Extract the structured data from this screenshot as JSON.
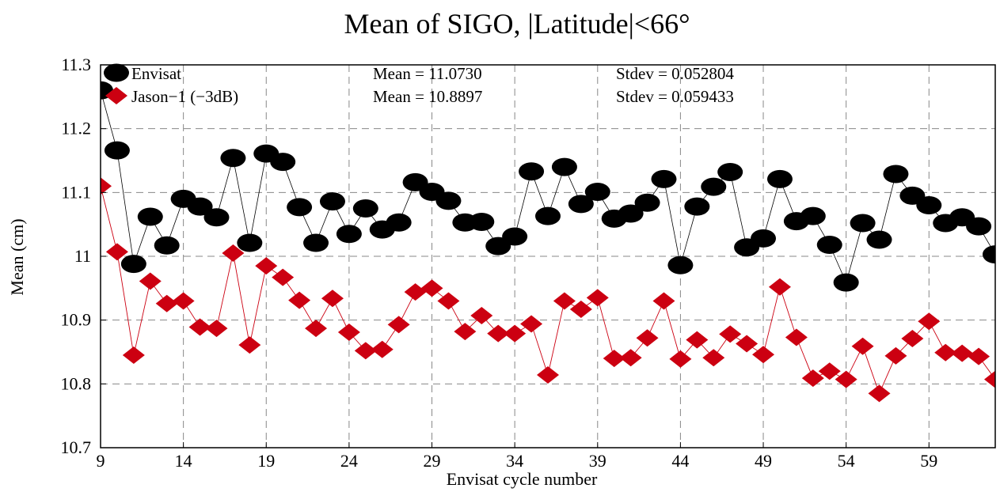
{
  "chart_data": {
    "type": "line",
    "title": "Mean of SIGO, |Latitude|<66°",
    "xlabel": "Envisat cycle number",
    "ylabel": "Mean (cm)",
    "xlim": [
      9,
      63
    ],
    "ylim": [
      10.7,
      11.3
    ],
    "xticks": [
      "9",
      "14",
      "19",
      "24",
      "29",
      "34",
      "39",
      "44",
      "49",
      "54",
      "59"
    ],
    "yticks": [
      "10.7",
      "10.8",
      "10.9",
      "11",
      "11.1",
      "11.2",
      "11.3"
    ],
    "grid": true,
    "legend_position": "top-left",
    "x": [
      9,
      10,
      11,
      12,
      13,
      14,
      15,
      16,
      17,
      18,
      19,
      20,
      21,
      22,
      23,
      24,
      25,
      26,
      27,
      28,
      29,
      30,
      31,
      32,
      33,
      34,
      35,
      36,
      37,
      38,
      39,
      40,
      41,
      42,
      43,
      44,
      45,
      46,
      47,
      48,
      49,
      50,
      51,
      52,
      53,
      54,
      55,
      56,
      57,
      58,
      59,
      60,
      61,
      62,
      63
    ],
    "series": [
      {
        "name": "Envisat",
        "color": "#000000",
        "marker": "circle",
        "stats": {
          "mean": "Mean = 11.0730",
          "stdev": "Stdev = 0.052804"
        },
        "values": [
          11.26,
          11.166,
          10.988,
          11.062,
          11.017,
          11.09,
          11.078,
          11.061,
          11.154,
          11.021,
          11.161,
          11.148,
          11.077,
          11.021,
          11.086,
          11.035,
          11.075,
          11.042,
          11.053,
          11.116,
          11.101,
          11.087,
          11.053,
          11.054,
          11.016,
          11.031,
          11.133,
          11.063,
          11.14,
          11.082,
          11.101,
          11.059,
          11.067,
          11.084,
          11.121,
          10.986,
          11.078,
          11.109,
          11.132,
          11.014,
          11.028,
          11.121,
          11.055,
          11.063,
          11.018,
          10.959,
          11.052,
          11.026,
          11.129,
          11.095,
          11.08,
          11.052,
          11.061,
          11.047,
          11.003
        ]
      },
      {
        "name": "Jason−1 (−3dB)",
        "color": "#cc0011",
        "marker": "diamond",
        "stats": {
          "mean": "Mean = 10.8897",
          "stdev": "Stdev = 0.059433"
        },
        "values": [
          11.11,
          11.007,
          10.845,
          10.961,
          10.926,
          10.93,
          10.889,
          10.887,
          11.005,
          10.861,
          10.985,
          10.967,
          10.931,
          10.887,
          10.934,
          10.881,
          10.852,
          10.854,
          10.893,
          10.944,
          10.95,
          10.93,
          10.882,
          10.907,
          10.879,
          10.879,
          10.894,
          10.814,
          10.93,
          10.917,
          10.935,
          10.84,
          10.841,
          10.872,
          10.93,
          10.839,
          10.869,
          10.841,
          10.878,
          10.863,
          10.846,
          10.952,
          10.873,
          10.809,
          10.82,
          10.807,
          10.859,
          10.785,
          10.844,
          10.871,
          10.898,
          10.849,
          10.848,
          10.843,
          10.807
        ]
      }
    ]
  }
}
